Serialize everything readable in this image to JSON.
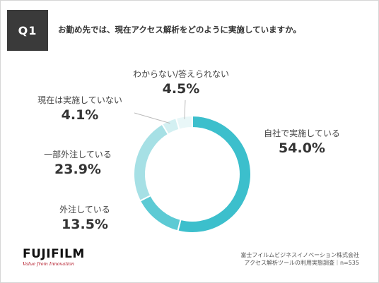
{
  "question": {
    "badge": "Q1",
    "text": "お勤め先では、現在アクセス解析をどのように実施していますか。"
  },
  "colors": {
    "badge_bg": "#3a3a3a",
    "series": [
      "#3cbfcc",
      "#5ccad4",
      "#a6e0e5",
      "#d3f0f2",
      "#e9f7f8"
    ]
  },
  "chart_data": {
    "type": "pie",
    "style": "donut",
    "unit": "%",
    "categories": [
      "自社で実施している",
      "外注している",
      "一部外注している",
      "現在は実施していない",
      "わからない/答えられない"
    ],
    "values": [
      54.0,
      13.5,
      23.9,
      4.1,
      4.5
    ],
    "value_labels": [
      "54.0%",
      "13.5%",
      "23.9%",
      "4.1%",
      "4.5%"
    ]
  },
  "footer": {
    "line1": "富士フイルムビジネスイノベーション株式会社",
    "line2": "アクセス解析ツールの利用実態調査｜n=535"
  },
  "logo": {
    "brand": "FUJIFILM",
    "tagline": "Value from Innovation"
  }
}
